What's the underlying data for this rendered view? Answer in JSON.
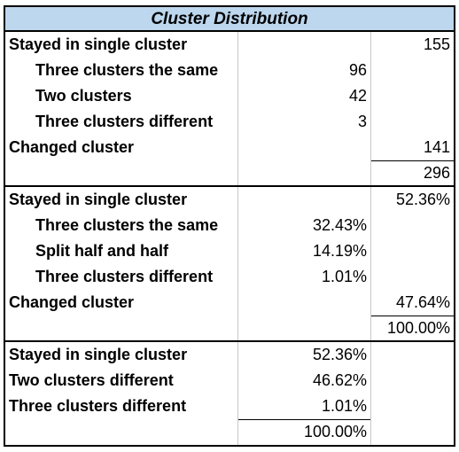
{
  "title": "Cluster Distribution",
  "section1": {
    "rows": [
      {
        "label": "Stayed in single cluster",
        "c2": "",
        "c3": "155"
      },
      {
        "label": "Three clusters the same",
        "c2": "96",
        "c3": ""
      },
      {
        "label": "Two clusters",
        "c2": "42",
        "c3": ""
      },
      {
        "label": "Three clusters different",
        "c2": "3",
        "c3": ""
      },
      {
        "label": "Changed cluster",
        "c2": "",
        "c3": "141"
      },
      {
        "label": "",
        "c2": "",
        "c3": "296"
      }
    ]
  },
  "section2": {
    "rows": [
      {
        "label": "Stayed in single cluster",
        "c2": "",
        "c3": "52.36%"
      },
      {
        "label": "Three clusters the same",
        "c2": "32.43%",
        "c3": ""
      },
      {
        "label": "Split half and half",
        "c2": "14.19%",
        "c3": ""
      },
      {
        "label": "Three clusters different",
        "c2": "1.01%",
        "c3": ""
      },
      {
        "label": "Changed cluster",
        "c2": "",
        "c3": "47.64%"
      },
      {
        "label": "",
        "c2": "",
        "c3": "100.00%"
      }
    ]
  },
  "section3": {
    "rows": [
      {
        "label": "Stayed in single cluster",
        "c2": "52.36%"
      },
      {
        "label": "Two clusters different",
        "c2": "46.62%"
      },
      {
        "label": "Three clusters different",
        "c2": "1.01%"
      },
      {
        "label": "",
        "c2": "100.00%"
      }
    ]
  }
}
